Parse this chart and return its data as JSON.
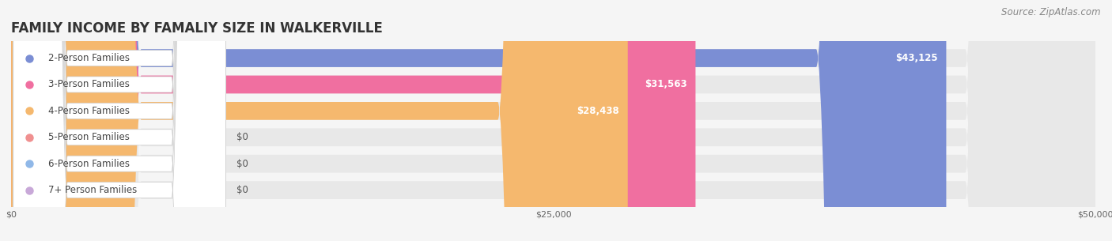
{
  "title": "FAMILY INCOME BY FAMALIY SIZE IN WALKERVILLE",
  "source": "Source: ZipAtlas.com",
  "categories": [
    "2-Person Families",
    "3-Person Families",
    "4-Person Families",
    "5-Person Families",
    "6-Person Families",
    "7+ Person Families"
  ],
  "values": [
    43125,
    31563,
    28438,
    0,
    0,
    0
  ],
  "bar_colors": [
    "#7b8ed4",
    "#f06fa0",
    "#f5b86e",
    "#f09090",
    "#90b8e8",
    "#c8a8d8"
  ],
  "xlim": [
    0,
    50000
  ],
  "xticks": [
    0,
    25000,
    50000
  ],
  "xtick_labels": [
    "$0",
    "$25,000",
    "$50,000"
  ],
  "background_color": "#f5f5f5",
  "bar_bg_color": "#e8e8e8",
  "title_fontsize": 12,
  "source_fontsize": 8.5,
  "label_fontsize": 8.5,
  "value_fontsize": 8.5
}
